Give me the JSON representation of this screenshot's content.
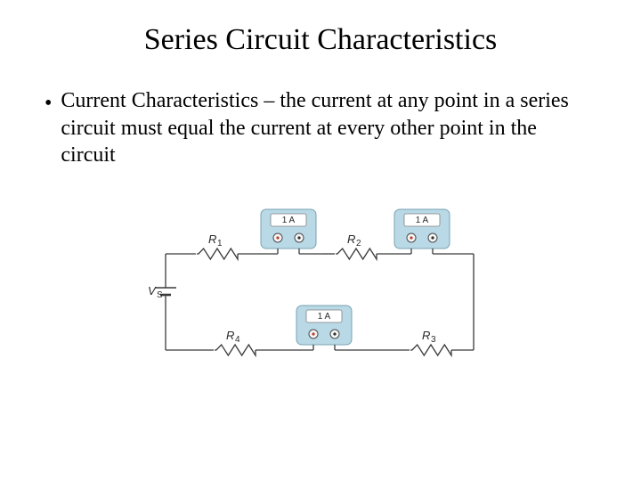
{
  "title": "Series Circuit Characteristics",
  "bullet_text": "Current Characteristics – the current at any point in a series circuit must equal the current at every other point in the circuit",
  "circuit": {
    "source_label": "V",
    "source_sub": "S",
    "resistors": [
      "R",
      "R",
      "R",
      "R"
    ],
    "resistor_subs": [
      "1",
      "2",
      "3",
      "4"
    ],
    "meter_reading": "1 A",
    "colors": {
      "wire": "#3a3a3a",
      "meter_body": "#b9d9e6",
      "meter_stroke": "#7aa2b3",
      "meter_display_bg": "#ffffff",
      "meter_display_stroke": "#808080",
      "probe_red": "#c1392b",
      "probe_black": "#2c2c2c",
      "probe_ring": "#4a4a4a",
      "label_color": "#2a2a2a"
    },
    "stroke_width": 1.3,
    "font_label": 13,
    "font_reading": 10
  }
}
